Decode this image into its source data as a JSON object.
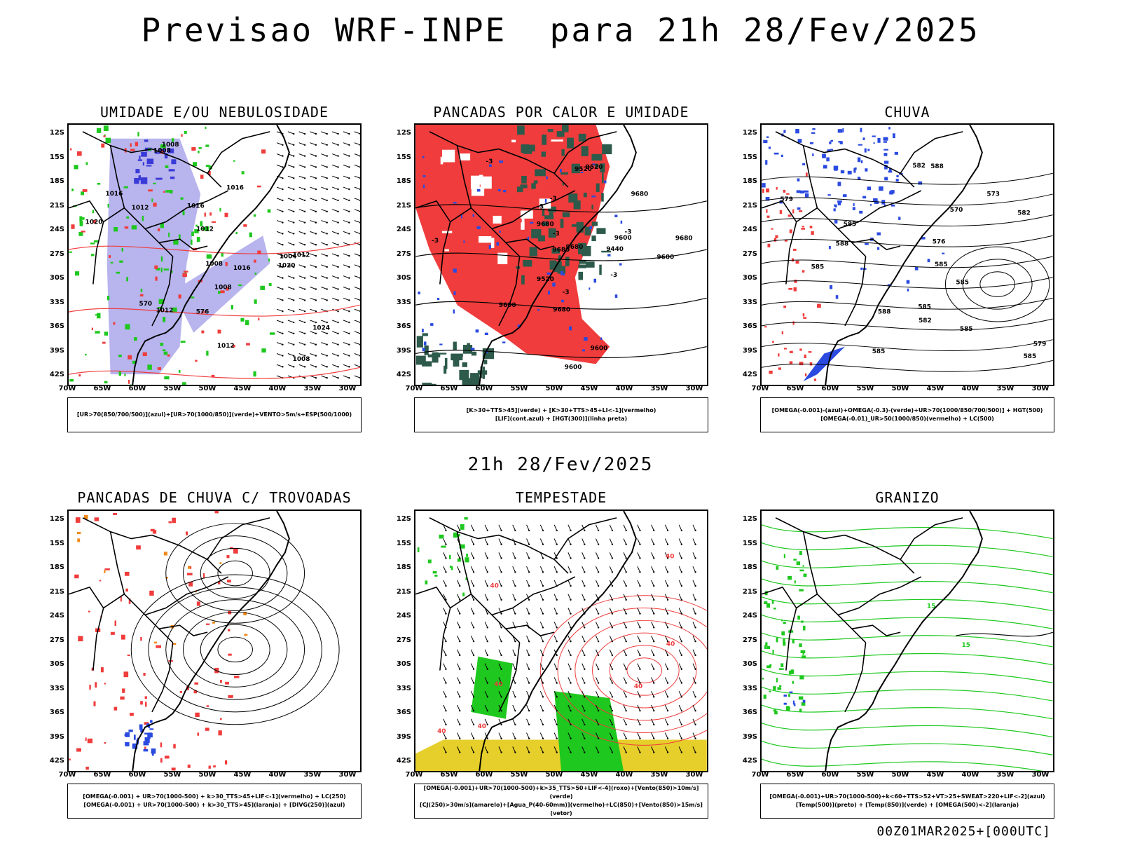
{
  "title": "Previsao WRF-INPE  para 21h 28/Fev/2025",
  "valid_time": "21h 28/Fev/2025",
  "footer": "00Z01MAR2025+[000UTC]",
  "lat_labels": [
    "12S",
    "15S",
    "18S",
    "21S",
    "24S",
    "27S",
    "30S",
    "33S",
    "36S",
    "39S",
    "42S"
  ],
  "lon_labels": [
    "70W",
    "65W",
    "60W",
    "55W",
    "50W",
    "45W",
    "40W",
    "35W",
    "30W"
  ],
  "panels": [
    {
      "title": "UMIDADE E/OU NEBULOSIDADE",
      "legend": [
        "[UR>70(850/700/500)](azul)+[UR>70(1000/850)](verde)+VENTO>5m/s+ESP(500/1000)"
      ],
      "labels": [
        "1012",
        "1016",
        "1012",
        "1008",
        "1012",
        "1016",
        "1020",
        "1016",
        "1024",
        "1020",
        "1008",
        "1004",
        "1008",
        "1012",
        "1008",
        "1012",
        "1016",
        "1008",
        "570",
        "576"
      ]
    },
    {
      "title": "PANCADAS POR CALOR E UMIDADE",
      "legend": [
        "[K>30+TTS>45](verde) + [K>30+TTS>45+LI<-1](vermelho)",
        "[LIF](cont.azul) + [HGT(300)](linha preta)"
      ],
      "labels": [
        "9600",
        "9600",
        "9680",
        "9600",
        "9680",
        "9680",
        "9680",
        "9680",
        "9680",
        "9600",
        "9520",
        "9440",
        "9520",
        "9600",
        "9520",
        "-3",
        "-3",
        "-3",
        "-3",
        "-3",
        "-3",
        "-3",
        "-3"
      ]
    },
    {
      "title": "CHUVA",
      "legend": [
        "[OMEGA(-0.001)-(azul)+OMEGA(-0.3)-(verde)+UR>70(1000/850/700/500)] + HGT(500)",
        "[OMEGA(-0.01)_UR>50(1000/850)(vermelho) + LC(500)"
      ],
      "labels": [
        "585",
        "585",
        "585",
        "585",
        "588",
        "588",
        "582",
        "585",
        "585",
        "570",
        "573",
        "576",
        "579",
        "588",
        "585",
        "582",
        "579",
        "582",
        "585"
      ]
    },
    {
      "title": "PANCADAS DE CHUVA C/ TROVOADAS",
      "legend": [
        "[OMEGA(-0.001) + UR>70(1000-500) + k>30_TTS>45+LIF<-1](vermelho) + LC(250)",
        "[OMEGA(-0.001) + UR>70(1000-500) + k>30_TTS>45](laranja) + [DIVG(250)](azul)"
      ],
      "labels": []
    },
    {
      "title": "TEMPESTADE",
      "legend": [
        "[OMEGA(-0.001)+UR>70(1000-500)+k>35_TTS>50+LIF<-4](roxo)+[Vento(850)>10m/s](verde)",
        "[CJ(250)>30m/s](amarelo)+[Agua_P(40-60mm)](vermelho)+LC(850)+[Vento(850)>15m/s](vetor)"
      ],
      "labels": [
        "40",
        "40",
        "40",
        "40",
        "40",
        "40",
        "40"
      ]
    },
    {
      "title": "GRANIZO",
      "legend": [
        "[OMEGA(-0.001)+UR>70(1000-500)+k<60+TTS>52+VT>25+SWEAT>220+LIF<-2](azul)",
        "[Temp(500)](preto) + [Temp(850)](verde) + [OMEGA(500)<-2](laranja)"
      ],
      "labels": [
        "15",
        "15"
      ]
    }
  ],
  "colors": {
    "blue_shade": "#b7b4ee",
    "blue_dark": "#3a3ad8",
    "green": "#1ec81e",
    "red": "#f03c3c",
    "dark_green": "#2d5a4a",
    "yellow": "#e6cf2a",
    "orange": "#f08a1a"
  }
}
